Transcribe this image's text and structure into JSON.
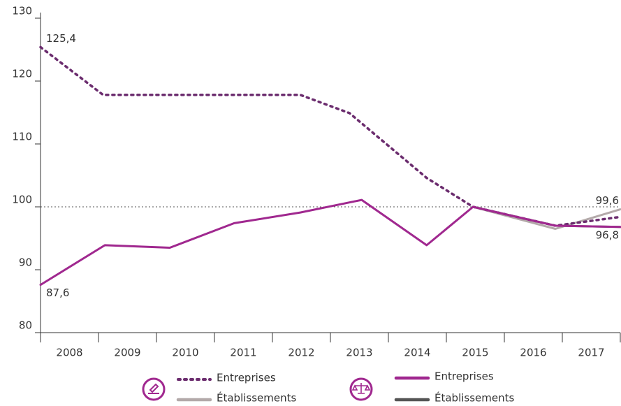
{
  "chart_data": {
    "type": "line",
    "categories": [
      "2008",
      "2009",
      "2010",
      "2011",
      "2012",
      "2013",
      "2014",
      "2015",
      "2016",
      "2017"
    ],
    "xlim": [
      2008,
      2018
    ],
    "ylim": [
      80,
      130
    ],
    "yticks": [
      80,
      90,
      100,
      110,
      120,
      130
    ],
    "reference_line": 100,
    "series": [
      {
        "name": "Entreprises",
        "color": "#6b2c6e",
        "dash": true,
        "x": [
          2008,
          2009.08,
          2012.48,
          2013.33,
          2014.66,
          2015.46,
          2016.88,
          2018
        ],
        "values": [
          125.4,
          117.8,
          117.8,
          114.9,
          104.6,
          100,
          97,
          98.4
        ],
        "value_labels": [
          "125,4",
          null,
          null,
          null,
          null,
          null,
          null,
          null
        ]
      },
      {
        "name": "Établissements",
        "color": "#b3a9a9",
        "dash": false,
        "x": [
          2015.46,
          2016.88,
          2018
        ],
        "values": [
          100,
          96.5,
          99.6
        ],
        "value_labels": [
          null,
          null,
          "99,6"
        ]
      },
      {
        "name": "Entreprises",
        "color": "#a0288f",
        "dash": false,
        "x": [
          2008,
          2009.11,
          2010.23,
          2011.34,
          2012.48,
          2013.54,
          2014.66,
          2015.46,
          2016.88,
          2018
        ],
        "values": [
          87.6,
          93.9,
          93.5,
          97.4,
          99.1,
          101.1,
          93.9,
          100,
          97,
          96.8
        ],
        "value_labels": [
          "87,6",
          null,
          null,
          null,
          null,
          null,
          null,
          null,
          null,
          "96,8"
        ]
      },
      {
        "name": "Établissements",
        "color": "#555555",
        "dash": false,
        "x": [
          2015.46,
          2016.88,
          2018
        ],
        "values": [
          100,
          97,
          96.8
        ],
        "value_labels": [
          null,
          null,
          null
        ]
      }
    ]
  }
}
